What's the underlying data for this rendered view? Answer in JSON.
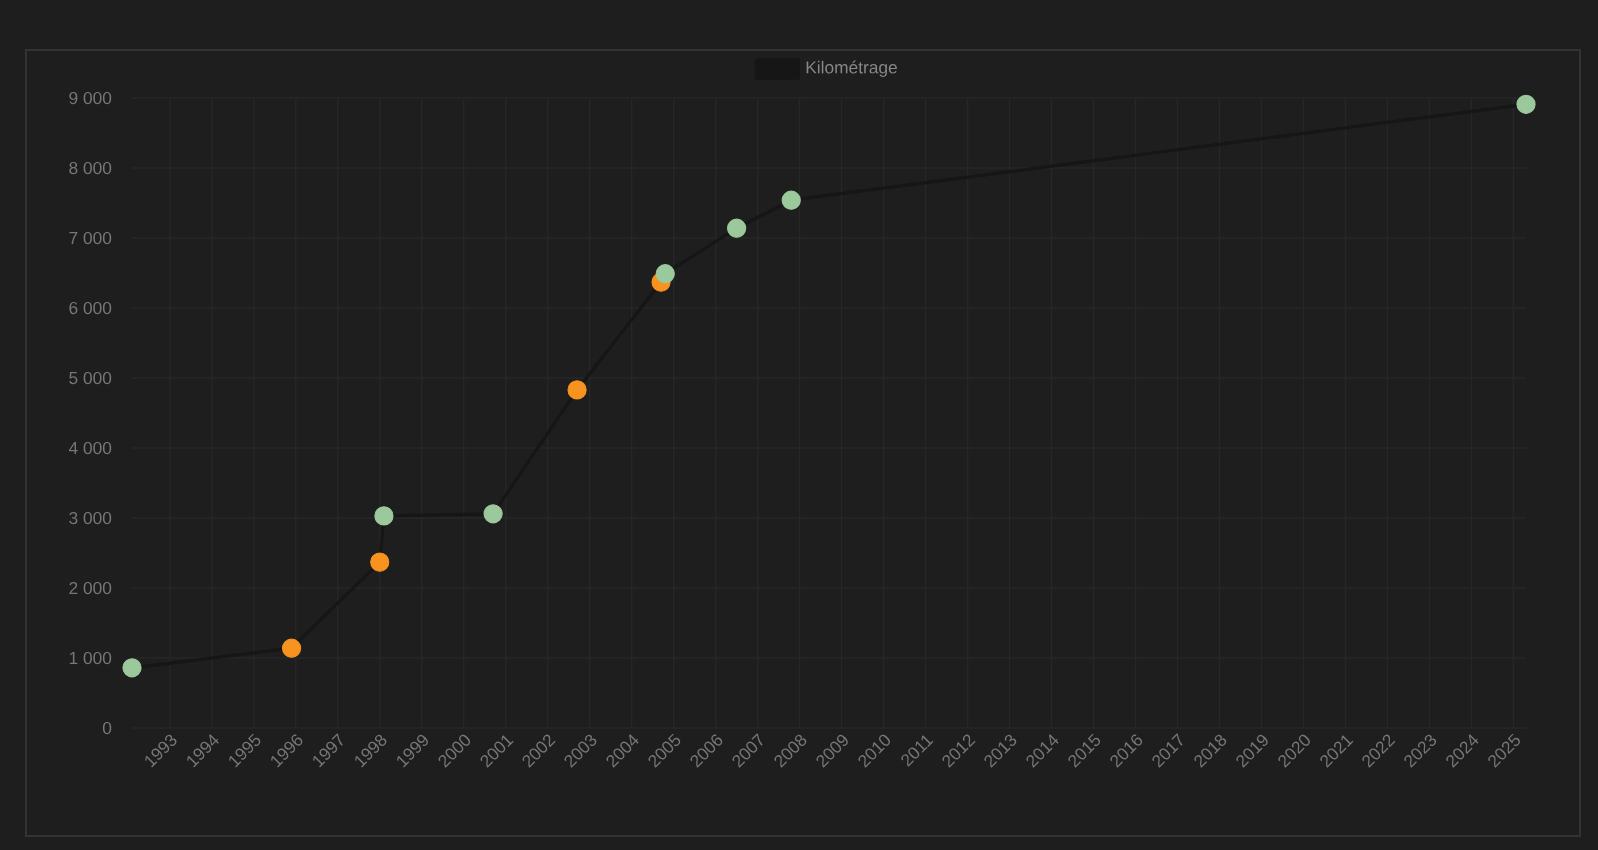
{
  "chart_data": {
    "type": "line",
    "x": [
      1992.1,
      1995.9,
      1998.0,
      1998.1,
      2000.7,
      2002.7,
      2004.7,
      2004.8,
      2006.5,
      2007.8,
      2025.3
    ],
    "series": [
      {
        "name": "Kilométrage",
        "color": "#161616",
        "colors": [
          "#9cc99c",
          "#f7931e",
          "#f7931e",
          "#9cc99c",
          "#9cc99c",
          "#f7931e",
          "#f7931e",
          "#9cc99c",
          "#9cc99c",
          "#9cc99c",
          "#9cc99c"
        ],
        "values": [
          860,
          1140,
          2370,
          3030,
          3060,
          4830,
          6370,
          6490,
          7140,
          7540,
          8910
        ]
      }
    ],
    "xlim": [
      1992.1,
      2025.3
    ],
    "xticks": [
      1993,
      1994,
      1995,
      1996,
      1997,
      1998,
      1999,
      2000,
      2001,
      2002,
      2003,
      2004,
      2005,
      2006,
      2007,
      2008,
      2009,
      2010,
      2011,
      2012,
      2013,
      2014,
      2015,
      2016,
      2017,
      2018,
      2019,
      2020,
      2021,
      2022,
      2023,
      2024,
      2025
    ],
    "ylim": [
      0,
      9000
    ],
    "yticks": [
      0,
      {
        "value": 1000,
        "label": "1 000"
      },
      {
        "value": 2000,
        "label": "2 000"
      },
      {
        "value": 3000,
        "label": "3 000"
      },
      {
        "value": 4000,
        "label": "4 000"
      },
      {
        "value": 5000,
        "label": "5 000"
      },
      {
        "value": 6000,
        "label": "6 000"
      },
      {
        "value": 7000,
        "label": "7 000"
      },
      {
        "value": 8000,
        "label": "8 000"
      },
      {
        "value": 9000,
        "label": "9 000"
      }
    ],
    "grid": true,
    "legend": "top",
    "marker": "circle",
    "line_style": "solid"
  }
}
